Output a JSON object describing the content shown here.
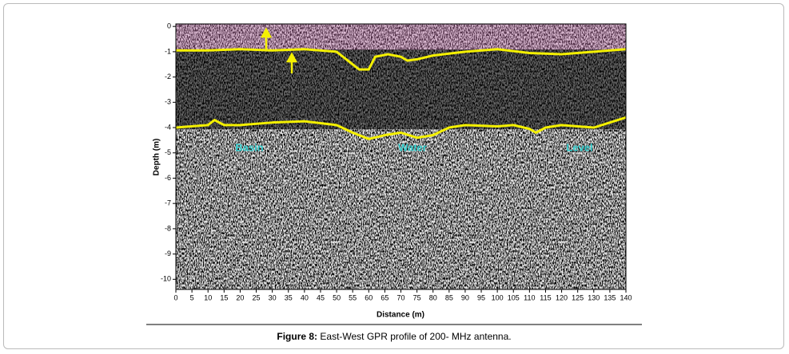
{
  "chart_data": {
    "type": "radargram",
    "x_label": "Distance (m)",
    "y_label": "Depth (m)",
    "xlim": [
      0,
      140
    ],
    "ylim": [
      0.1,
      -10.4
    ],
    "xticks": [
      0,
      5,
      10,
      15,
      20,
      25,
      30,
      35,
      40,
      45,
      50,
      55,
      60,
      65,
      70,
      75,
      80,
      85,
      90,
      95,
      100,
      105,
      110,
      115,
      120,
      125,
      130,
      135,
      140
    ],
    "yticks": [
      0,
      -1,
      -2,
      -3,
      -4,
      -5,
      -6,
      -7,
      -8,
      -9,
      -10
    ],
    "annotations": [
      "Basin",
      "Water",
      "Level"
    ],
    "lines": [
      {
        "color": "#f4f000",
        "x": [
          0,
          10,
          20,
          30,
          40,
          50,
          54,
          57,
          60,
          62,
          66,
          70,
          72,
          75,
          80,
          90,
          100,
          110,
          120,
          130,
          140
        ],
        "y": [
          -0.95,
          -0.95,
          -0.9,
          -0.95,
          -0.9,
          -1.0,
          -1.4,
          -1.7,
          -1.7,
          -1.2,
          -1.1,
          -1.2,
          -1.35,
          -1.3,
          -1.15,
          -1.0,
          -0.9,
          -1.05,
          -1.1,
          -1.0,
          -0.9
        ]
      },
      {
        "color": "#f4f000",
        "x": [
          0,
          10,
          12,
          15,
          20,
          30,
          40,
          50,
          55,
          60,
          65,
          70,
          75,
          80,
          85,
          90,
          100,
          105,
          110,
          112,
          115,
          120,
          125,
          130,
          135,
          140
        ],
        "y": [
          -4.0,
          -3.9,
          -3.7,
          -3.9,
          -3.9,
          -3.8,
          -3.75,
          -3.9,
          -4.2,
          -4.45,
          -4.3,
          -4.2,
          -4.4,
          -4.3,
          -4.0,
          -3.9,
          -3.95,
          -3.9,
          -4.05,
          -4.2,
          -4.0,
          -3.9,
          -3.95,
          -4.0,
          -3.8,
          -3.6
        ]
      }
    ]
  },
  "caption": {
    "label": "Figure 8:",
    "text": "East-West GPR profile of 200- MHz antenna."
  }
}
